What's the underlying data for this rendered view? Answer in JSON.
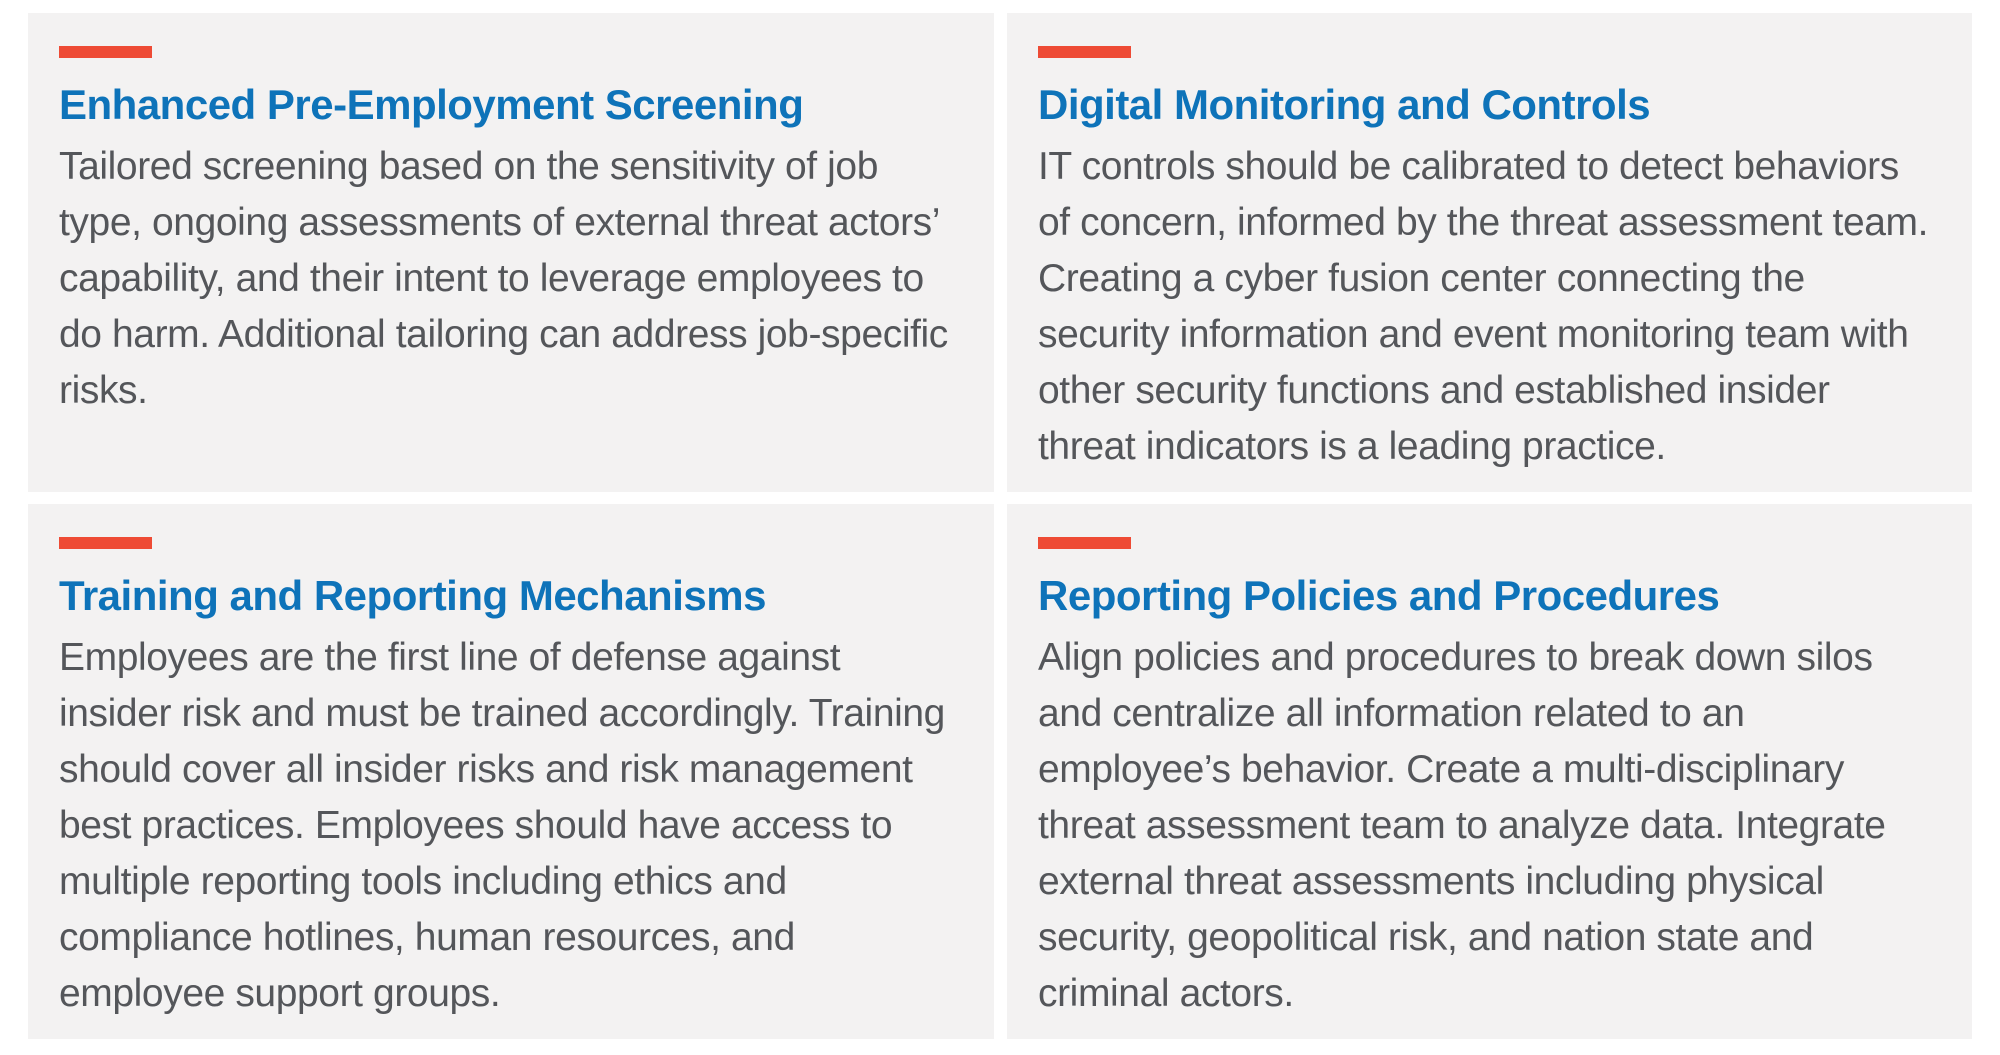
{
  "theme": {
    "card_background": "#f3f2f2",
    "accent_red": "#ee4b35",
    "heading_blue": "#0e73b9",
    "body_gray": "#54565a",
    "page_background": "#ffffff"
  },
  "cards": [
    {
      "title": "Enhanced Pre-Employment Screening",
      "body": "Tailored screening based on the sensitivity of job type, ongoing assessments of external threat actors’ capability, and their intent to leverage employees to do harm. Additional tailoring can address job-specific risks."
    },
    {
      "title": "Digital Monitoring and Controls",
      "body": "IT controls should be calibrated to detect behaviors of concern, informed by the threat assessment team. Creating a cyber fusion center connecting the security information and event monitoring team with other security functions and established insider threat indicators is a leading practice."
    },
    {
      "title": "Training and Reporting Mechanisms",
      "body": "Employees are the first line of defense against insider risk and must be trained accordingly. Training should cover all insider risks and risk management best practices. Employees should have access to multiple reporting tools including ethics and compliance hotlines, human resources, and employee support groups."
    },
    {
      "title": "Reporting Policies and Procedures",
      "body": "Align policies and procedures to break down silos and centralize all information related to an employee’s behavior. Create a multi-disciplinary threat assessment team to analyze data. Integrate external threat assessments including physical security, geopolitical risk, and nation state and criminal actors."
    }
  ]
}
